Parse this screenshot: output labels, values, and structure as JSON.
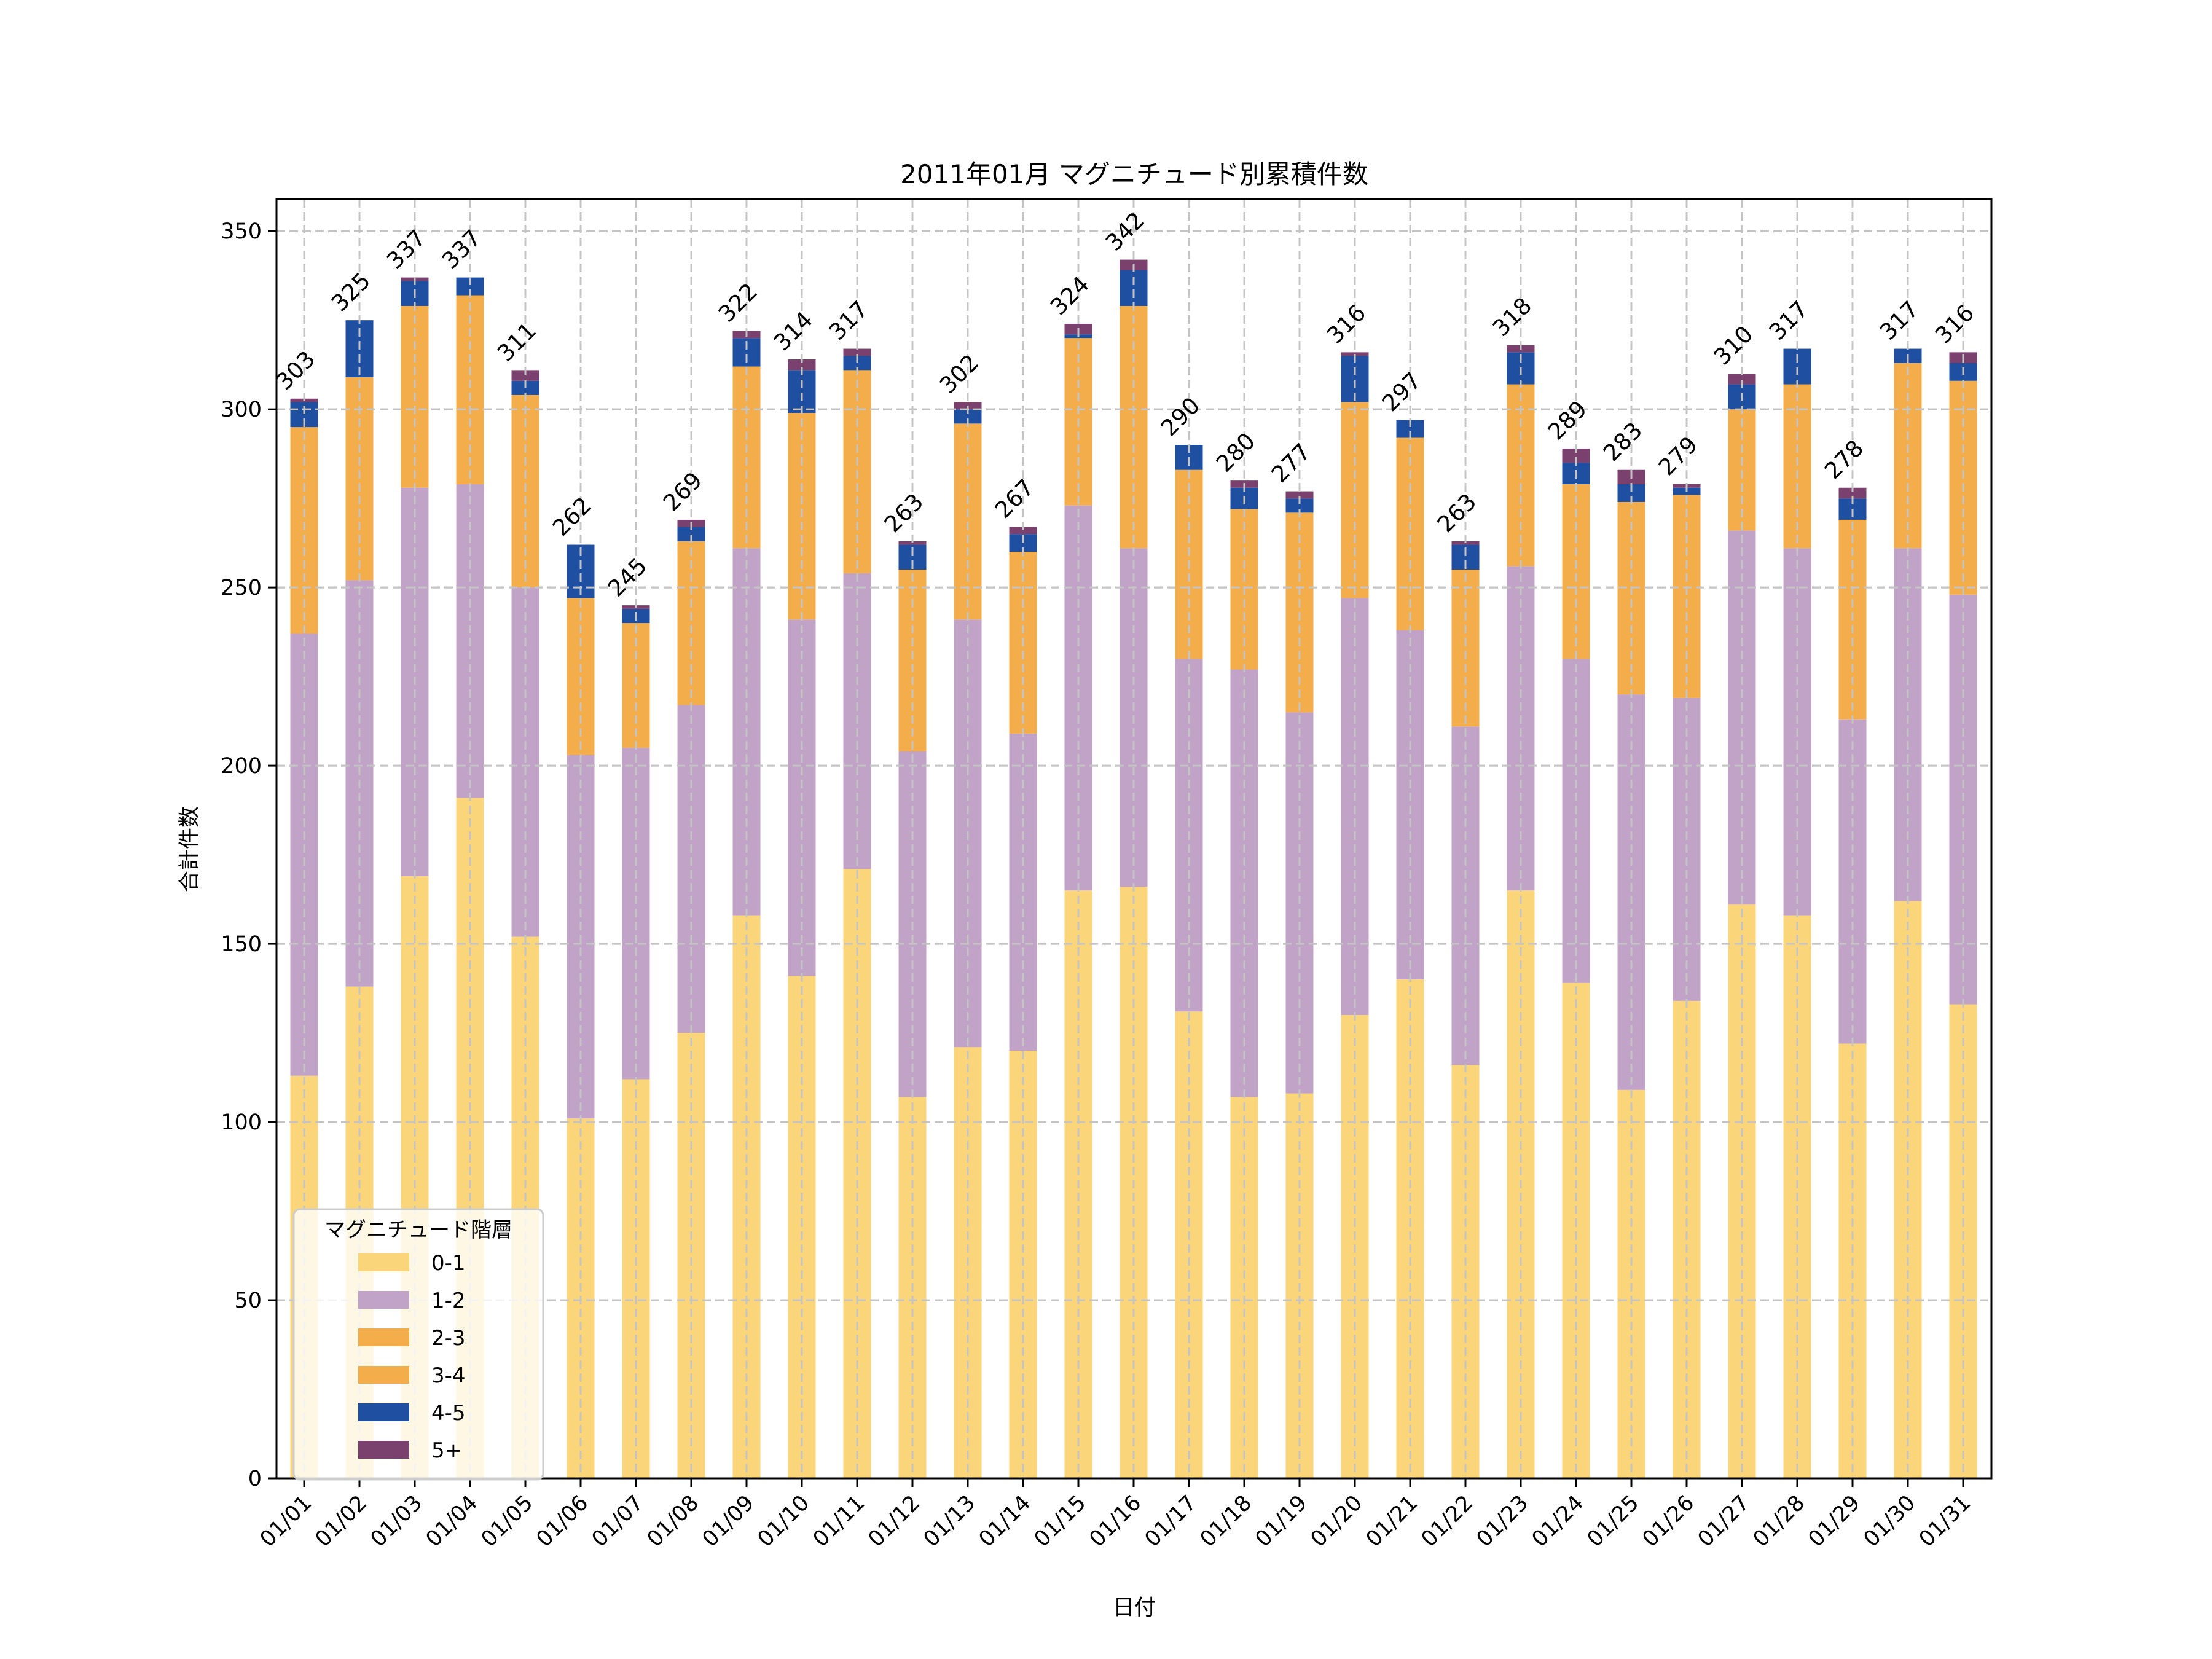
{
  "chart_data": {
    "type": "bar",
    "stacked": true,
    "title": "2011年01月 マグニチュード別累積件数",
    "xlabel": "日付",
    "ylabel": "合計件数",
    "ylim": [
      0,
      359
    ],
    "yticks": [
      0,
      50,
      100,
      150,
      200,
      250,
      300,
      350
    ],
    "grid": true,
    "legend": {
      "title": "マグニチュード階層",
      "placement": "lower-left"
    },
    "categories": [
      "01/01",
      "01/02",
      "01/03",
      "01/04",
      "01/05",
      "01/06",
      "01/07",
      "01/08",
      "01/09",
      "01/10",
      "01/11",
      "01/12",
      "01/13",
      "01/14",
      "01/15",
      "01/16",
      "01/17",
      "01/18",
      "01/19",
      "01/20",
      "01/21",
      "01/22",
      "01/23",
      "01/24",
      "01/25",
      "01/26",
      "01/27",
      "01/28",
      "01/29",
      "01/30",
      "01/31"
    ],
    "series": [
      {
        "name": "0-1",
        "color": "#FBD57A",
        "values": [
          113,
          138,
          169,
          191,
          152,
          101,
          112,
          125,
          158,
          141,
          171,
          107,
          121,
          120,
          165,
          166,
          131,
          107,
          108,
          130,
          140,
          116,
          165,
          139,
          109,
          134,
          161,
          158,
          122,
          162,
          133
        ]
      },
      {
        "name": "1-2",
        "color": "#C0A3C7",
        "values": [
          124,
          114,
          109,
          88,
          98,
          102,
          93,
          92,
          103,
          100,
          83,
          97,
          120,
          89,
          108,
          95,
          99,
          120,
          107,
          117,
          98,
          95,
          91,
          91,
          111,
          85,
          105,
          103,
          91,
          99,
          115
        ]
      },
      {
        "name": "2-3",
        "color": "#F4AD4B",
        "values": [
          58,
          57,
          51,
          53,
          54,
          44,
          35,
          46,
          51,
          58,
          57,
          51,
          55,
          51,
          47,
          68,
          53,
          45,
          56,
          55,
          54,
          44,
          51,
          49,
          54,
          57,
          34,
          46,
          56,
          52,
          60
        ]
      },
      {
        "name": "3-4",
        "color": "#F4AD4B",
        "values": [
          0,
          0,
          0,
          0,
          0,
          0,
          0,
          0,
          0,
          0,
          0,
          0,
          0,
          0,
          0,
          0,
          0,
          0,
          0,
          0,
          0,
          0,
          0,
          0,
          0,
          0,
          0,
          0,
          0,
          0,
          0
        ]
      },
      {
        "name": "4-5",
        "color": "#1F4FA0",
        "values": [
          7,
          16,
          7,
          5,
          4,
          15,
          4,
          4,
          8,
          12,
          4,
          7,
          4,
          5,
          1,
          10,
          7,
          6,
          4,
          13,
          5,
          7,
          9,
          6,
          5,
          2,
          7,
          10,
          6,
          4,
          5
        ]
      },
      {
        "name": "5+",
        "color": "#7A416F",
        "values": [
          1,
          0,
          1,
          0,
          3,
          0,
          1,
          2,
          2,
          3,
          2,
          1,
          2,
          2,
          3,
          3,
          0,
          2,
          2,
          1,
          0,
          1,
          2,
          4,
          4,
          1,
          3,
          0,
          3,
          0,
          3
        ]
      }
    ],
    "totals": [
      303,
      325,
      337,
      337,
      311,
      262,
      245,
      269,
      322,
      314,
      317,
      263,
      302,
      267,
      324,
      342,
      290,
      280,
      277,
      316,
      297,
      263,
      318,
      289,
      283,
      279,
      310,
      317,
      278,
      317,
      316
    ]
  }
}
